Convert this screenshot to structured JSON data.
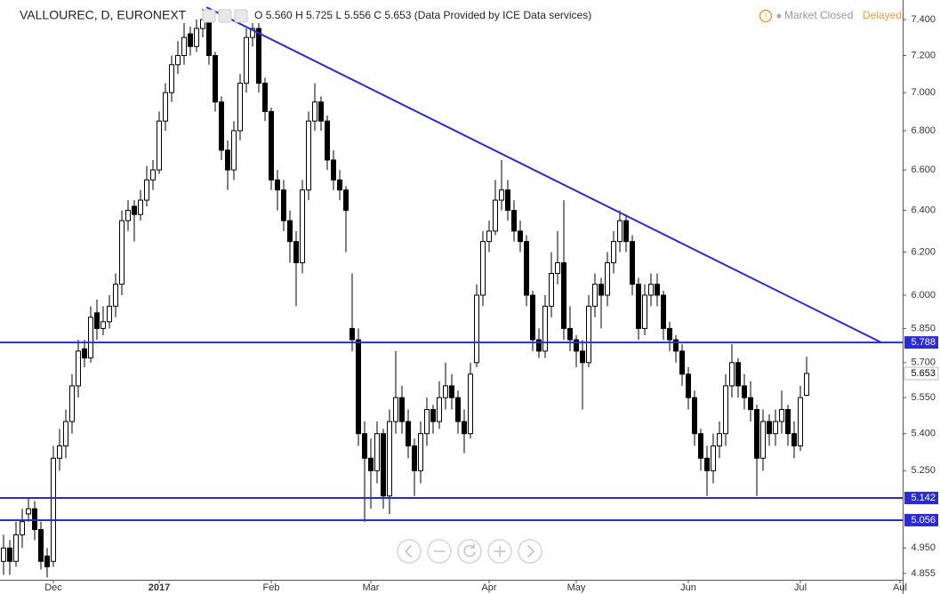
{
  "chart_data": {
    "type": "candlestick",
    "header": {
      "title": "VALLOUREC, D, EURONEXT",
      "o_label": "O",
      "open": "5.560",
      "h_label": "H",
      "high": "5.725",
      "l_label": "L",
      "low": "5.556",
      "c_label": "C",
      "close": "5.653",
      "source": "(Data Provided by ICE Data services)",
      "status": "Market Closed",
      "delay": "Delayed"
    },
    "log": true,
    "ylim": [
      4.822,
      7.511
    ],
    "yticks": [
      {
        "value": 7.4,
        "label": "7.400"
      },
      {
        "value": 7.2,
        "label": "7.200"
      },
      {
        "value": 7.0,
        "label": "7.000"
      },
      {
        "value": 6.8,
        "label": "6.800"
      },
      {
        "value": 6.6,
        "label": "6.600"
      },
      {
        "value": 6.4,
        "label": "6.400"
      },
      {
        "value": 6.2,
        "label": "6.200"
      },
      {
        "value": 6.0,
        "label": "6.000"
      },
      {
        "value": 5.85,
        "label": "5.850"
      },
      {
        "value": 5.7,
        "label": "5.700"
      },
      {
        "value": 5.55,
        "label": "5.550"
      },
      {
        "value": 5.4,
        "label": "5.400"
      },
      {
        "value": 5.25,
        "label": "5.250"
      },
      {
        "value": 4.95,
        "label": "4.950"
      },
      {
        "value": 4.855,
        "label": "4.855"
      }
    ],
    "x_labels": [
      {
        "label": "Dec",
        "index": 8
      },
      {
        "label": "2017",
        "index": 25,
        "bold": true
      },
      {
        "label": "Feb",
        "index": 43
      },
      {
        "label": "Mar",
        "index": 59
      },
      {
        "label": "Apr",
        "index": 78
      },
      {
        "label": "May",
        "index": 92
      },
      {
        "label": "Jun",
        "index": 110
      },
      {
        "label": "Jul",
        "index": 128
      },
      {
        "label": "Aul",
        "index": 144
      }
    ],
    "levels": [
      {
        "value": 5.788,
        "label": "5.788"
      },
      {
        "value": 5.142,
        "label": "5.142"
      },
      {
        "value": 5.056,
        "label": "5.056"
      }
    ],
    "level_color": "#2b2bd4",
    "trendline": {
      "start": [
        32.6,
        7.47
      ],
      "end": [
        141,
        5.788
      ]
    },
    "up_color": "#ffffff",
    "down_color": "#000000",
    "ohlc": [
      [
        4.9,
        5.0,
        4.85,
        4.95
      ],
      [
        4.95,
        4.98,
        4.85,
        4.9
      ],
      [
        4.9,
        5.05,
        4.88,
        5.0
      ],
      [
        5.0,
        5.1,
        4.95,
        5.05
      ],
      [
        5.08,
        5.14,
        5.05,
        5.1
      ],
      [
        5.1,
        5.13,
        4.98,
        5.02
      ],
      [
        5.02,
        5.05,
        4.87,
        4.9
      ],
      [
        4.92,
        4.95,
        4.84,
        4.88
      ],
      [
        4.9,
        5.35,
        4.88,
        5.3
      ],
      [
        5.3,
        5.42,
        5.25,
        5.35
      ],
      [
        5.35,
        5.5,
        5.3,
        5.45
      ],
      [
        5.45,
        5.65,
        5.4,
        5.6
      ],
      [
        5.6,
        5.8,
        5.55,
        5.75
      ],
      [
        5.76,
        5.8,
        5.68,
        5.72
      ],
      [
        5.72,
        5.95,
        5.7,
        5.9
      ],
      [
        5.92,
        5.98,
        5.8,
        5.85
      ],
      [
        5.85,
        5.95,
        5.82,
        5.88
      ],
      [
        5.88,
        6.0,
        5.85,
        5.95
      ],
      [
        5.95,
        6.1,
        5.9,
        6.05
      ],
      [
        6.05,
        6.4,
        6.0,
        6.35
      ],
      [
        6.35,
        6.45,
        6.3,
        6.4
      ],
      [
        6.42,
        6.45,
        6.25,
        6.38
      ],
      [
        6.38,
        6.5,
        6.35,
        6.45
      ],
      [
        6.45,
        6.62,
        6.42,
        6.55
      ],
      [
        6.55,
        6.65,
        6.5,
        6.6
      ],
      [
        6.6,
        6.9,
        6.58,
        6.85
      ],
      [
        6.85,
        7.05,
        6.8,
        7.0
      ],
      [
        7.0,
        7.2,
        6.95,
        7.15
      ],
      [
        7.15,
        7.28,
        7.1,
        7.2
      ],
      [
        7.2,
        7.38,
        7.15,
        7.3
      ],
      [
        7.32,
        7.36,
        7.2,
        7.25
      ],
      [
        7.25,
        7.4,
        7.22,
        7.35
      ],
      [
        7.35,
        7.46,
        7.3,
        7.4
      ],
      [
        7.4,
        7.42,
        7.15,
        7.2
      ],
      [
        7.2,
        7.22,
        6.9,
        6.95
      ],
      [
        6.95,
        6.98,
        6.65,
        6.7
      ],
      [
        6.7,
        6.75,
        6.5,
        6.6
      ],
      [
        6.6,
        6.85,
        6.55,
        6.8
      ],
      [
        6.8,
        7.1,
        6.75,
        7.05
      ],
      [
        7.05,
        7.35,
        7.0,
        7.3
      ],
      [
        7.3,
        7.38,
        7.25,
        7.35
      ],
      [
        7.35,
        7.38,
        7.0,
        7.05
      ],
      [
        7.05,
        7.08,
        6.85,
        6.9
      ],
      [
        6.9,
        6.92,
        6.5,
        6.55
      ],
      [
        6.55,
        6.6,
        6.4,
        6.5
      ],
      [
        6.5,
        6.55,
        6.3,
        6.35
      ],
      [
        6.35,
        6.4,
        6.15,
        6.25
      ],
      [
        6.25,
        6.3,
        5.95,
        6.15
      ],
      [
        6.15,
        6.55,
        6.1,
        6.5
      ],
      [
        6.5,
        6.9,
        6.45,
        6.85
      ],
      [
        6.85,
        7.05,
        6.8,
        6.95
      ],
      [
        6.95,
        6.98,
        6.8,
        6.85
      ],
      [
        6.85,
        6.88,
        6.6,
        6.65
      ],
      [
        6.65,
        6.7,
        6.5,
        6.55
      ],
      [
        6.55,
        6.6,
        6.45,
        6.5
      ],
      [
        6.5,
        6.52,
        6.2,
        6.4
      ],
      [
        5.85,
        6.1,
        5.75,
        5.8
      ],
      [
        5.8,
        5.85,
        5.35,
        5.4
      ],
      [
        5.4,
        5.45,
        5.05,
        5.3
      ],
      [
        5.3,
        5.38,
        5.1,
        5.25
      ],
      [
        5.25,
        5.45,
        5.2,
        5.4
      ],
      [
        5.4,
        5.42,
        5.1,
        5.15
      ],
      [
        5.15,
        5.5,
        5.08,
        5.45
      ],
      [
        5.45,
        5.75,
        5.4,
        5.55
      ],
      [
        5.55,
        5.6,
        5.4,
        5.45
      ],
      [
        5.45,
        5.5,
        5.3,
        5.35
      ],
      [
        5.35,
        5.38,
        5.15,
        5.25
      ],
      [
        5.25,
        5.45,
        5.2,
        5.4
      ],
      [
        5.4,
        5.55,
        5.35,
        5.5
      ],
      [
        5.5,
        5.52,
        5.4,
        5.45
      ],
      [
        5.45,
        5.62,
        5.42,
        5.55
      ],
      [
        5.55,
        5.7,
        5.5,
        5.6
      ],
      [
        5.6,
        5.65,
        5.5,
        5.55
      ],
      [
        5.55,
        5.58,
        5.4,
        5.45
      ],
      [
        5.45,
        5.5,
        5.32,
        5.4
      ],
      [
        5.4,
        5.7,
        5.38,
        5.65
      ],
      [
        5.7,
        6.05,
        5.68,
        6.0
      ],
      [
        6.0,
        6.3,
        5.95,
        6.25
      ],
      [
        6.25,
        6.35,
        6.2,
        6.3
      ],
      [
        6.3,
        6.55,
        6.28,
        6.45
      ],
      [
        6.45,
        6.65,
        6.4,
        6.5
      ],
      [
        6.5,
        6.55,
        6.35,
        6.4
      ],
      [
        6.4,
        6.45,
        6.25,
        6.3
      ],
      [
        6.3,
        6.35,
        6.2,
        6.25
      ],
      [
        6.25,
        6.28,
        5.95,
        6.0
      ],
      [
        6.0,
        6.02,
        5.75,
        5.8
      ],
      [
        5.8,
        5.85,
        5.72,
        5.75
      ],
      [
        5.75,
        6.0,
        5.72,
        5.95
      ],
      [
        5.95,
        6.2,
        5.9,
        6.1
      ],
      [
        6.1,
        6.3,
        6.05,
        6.15
      ],
      [
        6.15,
        6.45,
        5.8,
        5.85
      ],
      [
        5.85,
        5.95,
        5.75,
        5.8
      ],
      [
        5.8,
        5.82,
        5.68,
        5.75
      ],
      [
        5.75,
        5.8,
        5.5,
        5.7
      ],
      [
        5.7,
        6.0,
        5.68,
        5.95
      ],
      [
        5.95,
        6.1,
        5.9,
        6.05
      ],
      [
        6.05,
        6.08,
        5.85,
        6.0
      ],
      [
        6.0,
        6.2,
        5.95,
        6.15
      ],
      [
        6.15,
        6.3,
        6.1,
        6.25
      ],
      [
        6.25,
        6.4,
        6.2,
        6.35
      ],
      [
        6.35,
        6.38,
        6.2,
        6.25
      ],
      [
        6.25,
        6.28,
        6.0,
        6.05
      ],
      [
        6.05,
        6.08,
        5.8,
        5.85
      ],
      [
        5.85,
        6.05,
        5.82,
        6.0
      ],
      [
        6.0,
        6.1,
        5.95,
        6.05
      ],
      [
        6.05,
        6.1,
        5.95,
        6.0
      ],
      [
        6.0,
        6.02,
        5.8,
        5.85
      ],
      [
        5.85,
        5.88,
        5.75,
        5.8
      ],
      [
        5.8,
        5.82,
        5.7,
        5.75
      ],
      [
        5.75,
        5.78,
        5.6,
        5.65
      ],
      [
        5.65,
        5.68,
        5.5,
        5.55
      ],
      [
        5.55,
        5.58,
        5.35,
        5.4
      ],
      [
        5.4,
        5.42,
        5.25,
        5.3
      ],
      [
        5.3,
        5.35,
        5.15,
        5.25
      ],
      [
        5.25,
        5.4,
        5.2,
        5.35
      ],
      [
        5.35,
        5.45,
        5.3,
        5.4
      ],
      [
        5.4,
        5.65,
        5.35,
        5.6
      ],
      [
        5.6,
        5.78,
        5.55,
        5.7
      ],
      [
        5.7,
        5.72,
        5.55,
        5.6
      ],
      [
        5.6,
        5.65,
        5.5,
        5.55
      ],
      [
        5.55,
        5.62,
        5.45,
        5.5
      ],
      [
        5.5,
        5.52,
        5.15,
        5.3
      ],
      [
        5.3,
        5.5,
        5.25,
        5.45
      ],
      [
        5.45,
        5.48,
        5.35,
        5.4
      ],
      [
        5.4,
        5.5,
        5.35,
        5.45
      ],
      [
        5.45,
        5.58,
        5.4,
        5.5
      ],
      [
        5.5,
        5.52,
        5.35,
        5.4
      ],
      [
        5.4,
        5.45,
        5.3,
        5.35
      ],
      [
        5.35,
        5.6,
        5.33,
        5.55
      ],
      [
        5.56,
        5.725,
        5.556,
        5.653
      ]
    ]
  }
}
